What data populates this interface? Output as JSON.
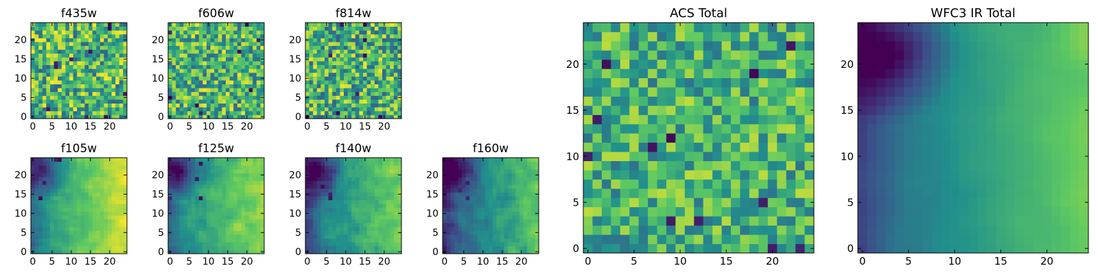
{
  "colormap": "viridis",
  "colormap_stops": [
    "#440154",
    "#3b528b",
    "#21918c",
    "#5ec962",
    "#fde725"
  ],
  "frame_color": "#000000",
  "chart_data": [
    {
      "type": "heatmap",
      "title": "f435w",
      "grid_size": 25,
      "xlim": [
        -0.5,
        24.5
      ],
      "ylim": [
        -0.5,
        24.5
      ],
      "xticks": [
        "0",
        "5",
        "10",
        "15",
        "20"
      ],
      "yticks": [
        "0",
        "5",
        "10",
        "15",
        "20"
      ],
      "pattern": "noise",
      "mean": 0.66,
      "spread": 0.34,
      "smooth": 0,
      "seed": 11,
      "dark_spots": 10
    },
    {
      "type": "heatmap",
      "title": "f606w",
      "grid_size": 25,
      "xlim": [
        -0.5,
        24.5
      ],
      "ylim": [
        -0.5,
        24.5
      ],
      "xticks": [
        "0",
        "5",
        "10",
        "15",
        "20"
      ],
      "yticks": [
        "0",
        "5",
        "10",
        "15",
        "20"
      ],
      "pattern": "noise",
      "mean": 0.66,
      "spread": 0.32,
      "smooth": 0,
      "seed": 23,
      "dark_spots": 8
    },
    {
      "type": "heatmap",
      "title": "f814w",
      "grid_size": 25,
      "xlim": [
        -0.5,
        24.5
      ],
      "ylim": [
        -0.5,
        24.5
      ],
      "xticks": [
        "0",
        "5",
        "10",
        "15",
        "20"
      ],
      "yticks": [
        "0",
        "5",
        "10",
        "15",
        "20"
      ],
      "pattern": "noise",
      "mean": 0.64,
      "spread": 0.34,
      "smooth": 0,
      "seed": 37,
      "dark_spots": 9
    },
    {
      "type": "heatmap",
      "title": "f105w",
      "grid_size": 25,
      "xlim": [
        -0.5,
        24.5
      ],
      "ylim": [
        -0.5,
        24.5
      ],
      "xticks": [
        "0",
        "5",
        "10",
        "15",
        "20"
      ],
      "yticks": [
        "0",
        "5",
        "10",
        "15",
        "20"
      ],
      "pattern": "gradient",
      "mean": 0.68,
      "spread": 0.18,
      "smooth": 1,
      "seed": 41,
      "dark_spots": 4
    },
    {
      "type": "heatmap",
      "title": "f125w",
      "grid_size": 25,
      "xlim": [
        -0.5,
        24.5
      ],
      "ylim": [
        -0.5,
        24.5
      ],
      "xticks": [
        "0",
        "5",
        "10",
        "15",
        "20"
      ],
      "yticks": [
        "0",
        "5",
        "10",
        "15",
        "20"
      ],
      "pattern": "gradient",
      "mean": 0.62,
      "spread": 0.2,
      "smooth": 1,
      "seed": 53,
      "dark_spots": 5
    },
    {
      "type": "heatmap",
      "title": "f140w",
      "grid_size": 25,
      "xlim": [
        -0.5,
        24.5
      ],
      "ylim": [
        -0.5,
        24.5
      ],
      "xticks": [
        "0",
        "5",
        "10",
        "15",
        "20"
      ],
      "yticks": [
        "0",
        "5",
        "10",
        "15",
        "20"
      ],
      "pattern": "gradient",
      "mean": 0.55,
      "spread": 0.22,
      "smooth": 1,
      "seed": 67,
      "dark_spots": 5
    },
    {
      "type": "heatmap",
      "title": "f160w",
      "grid_size": 25,
      "xlim": [
        -0.5,
        24.5
      ],
      "ylim": [
        -0.5,
        24.5
      ],
      "xticks": [
        "0",
        "5",
        "10",
        "15",
        "20"
      ],
      "yticks": [
        "0",
        "5",
        "10",
        "15",
        "20"
      ],
      "pattern": "gradient",
      "mean": 0.48,
      "spread": 0.22,
      "smooth": 1,
      "seed": 79,
      "dark_spots": 4
    },
    {
      "type": "heatmap",
      "title": "ACS Total",
      "grid_size": 25,
      "xlim": [
        -0.5,
        24.5
      ],
      "ylim": [
        -0.5,
        24.5
      ],
      "xticks": [
        "0",
        "5",
        "10",
        "15",
        "20"
      ],
      "yticks": [
        "0",
        "5",
        "10",
        "15",
        "20"
      ],
      "pattern": "noise",
      "mean": 0.64,
      "spread": 0.26,
      "smooth": 0,
      "seed": 97,
      "dark_spots": 12
    },
    {
      "type": "heatmap",
      "title": "WFC3 IR Total",
      "grid_size": 25,
      "xlim": [
        -0.5,
        24.5
      ],
      "ylim": [
        -0.5,
        24.5
      ],
      "xticks": [
        "0",
        "5",
        "10",
        "15",
        "20"
      ],
      "yticks": [
        "0",
        "5",
        "10",
        "15",
        "20"
      ],
      "pattern": "gradient",
      "mean": 0.52,
      "spread": 0.1,
      "smooth": 2,
      "seed": 113,
      "dark_spots": 0
    }
  ]
}
